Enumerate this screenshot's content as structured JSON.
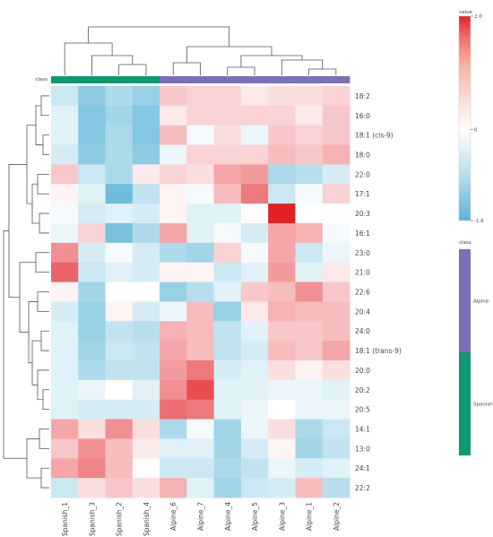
{
  "chart_data": {
    "type": "heatmap",
    "title": "",
    "xlabel": "",
    "ylabel": "",
    "columns": [
      "Spanish_1",
      "Spanish_3",
      "Spanish_2",
      "Spanish_4",
      "Alpine_6",
      "Alpine_7",
      "Alpine_4",
      "Alpine_5",
      "Alpine_3",
      "Alpine_1",
      "Alpine_2"
    ],
    "rows": [
      "18:2",
      "16:0",
      "18:1 (cis-9)",
      "18:0",
      "22:0",
      "17:1",
      "20:3",
      "16:1",
      "23:0",
      "21:0",
      "22:6",
      "20:4",
      "24:0",
      "18:1 (trans-9)",
      "20:0",
      "20:2",
      "20:5",
      "14:1",
      "13:0",
      "24:1",
      "22:2"
    ],
    "values": [
      [
        -0.5,
        -1.1,
        -0.8,
        -1.0,
        0.5,
        0.4,
        0.4,
        0.2,
        0.3,
        0.3,
        0.4
      ],
      [
        -0.3,
        -1.2,
        -0.9,
        -1.2,
        0.2,
        0.4,
        0.4,
        0.4,
        0.4,
        0.2,
        0.5
      ],
      [
        -0.3,
        -1.2,
        -0.8,
        -1.2,
        0.6,
        -0.1,
        0.3,
        -0.2,
        0.5,
        0.4,
        0.5
      ],
      [
        -0.4,
        -1.1,
        -0.8,
        -1.1,
        -0.2,
        0.4,
        0.4,
        0.4,
        0.6,
        0.5,
        0.7
      ],
      [
        0.5,
        -0.5,
        -0.8,
        0.2,
        0.4,
        0.3,
        0.8,
        0.9,
        -0.8,
        -0.7,
        -0.4
      ],
      [
        0.1,
        -0.3,
        -1.4,
        -0.6,
        0.1,
        -0.1,
        0.6,
        1.2,
        -0.5,
        -0.1,
        0.4
      ],
      [
        -0.1,
        -0.4,
        -0.3,
        -0.4,
        0.1,
        -0.3,
        -0.3,
        0.0,
        2.0,
        0.0,
        0.0
      ],
      [
        -0.2,
        0.4,
        -1.3,
        -0.8,
        0.8,
        -0.3,
        -0.1,
        -0.4,
        0.8,
        0.7,
        -0.1
      ],
      [
        1.0,
        -0.4,
        -0.1,
        -0.4,
        -0.8,
        -0.9,
        0.4,
        -0.1,
        0.8,
        -0.5,
        -0.2
      ],
      [
        1.4,
        -0.5,
        -0.3,
        -0.4,
        0.1,
        0.1,
        -0.5,
        -0.3,
        0.9,
        -0.3,
        0.2
      ],
      [
        0.1,
        -0.9,
        0.0,
        0.0,
        -1.0,
        -0.7,
        -0.3,
        0.5,
        0.6,
        1.0,
        0.5
      ],
      [
        -0.4,
        -1.0,
        0.1,
        -0.4,
        -0.2,
        0.6,
        -1.0,
        0.2,
        0.7,
        0.6,
        0.6
      ],
      [
        -0.3,
        -1.0,
        -0.6,
        -0.7,
        0.7,
        0.6,
        -0.6,
        -0.3,
        0.5,
        0.5,
        0.6
      ],
      [
        -0.3,
        -0.9,
        -0.5,
        -0.6,
        0.8,
        0.6,
        -0.6,
        -0.4,
        0.6,
        0.5,
        0.8
      ],
      [
        -0.3,
        -0.8,
        -0.6,
        -0.6,
        0.9,
        1.2,
        -0.4,
        -0.3,
        0.3,
        0.1,
        0.3
      ],
      [
        -0.3,
        -0.2,
        0.0,
        -0.3,
        1.0,
        1.6,
        -0.3,
        -0.3,
        -0.2,
        -0.2,
        -0.3
      ],
      [
        -0.3,
        -0.4,
        -0.4,
        -0.4,
        1.3,
        1.2,
        -0.3,
        -0.2,
        0.0,
        -0.2,
        -0.2
      ],
      [
        0.8,
        0.3,
        1.0,
        0.3,
        -0.8,
        -0.1,
        -0.9,
        -0.2,
        0.3,
        -0.8,
        -0.5
      ],
      [
        0.5,
        1.0,
        0.6,
        0.2,
        -0.3,
        -0.3,
        -0.9,
        -0.4,
        0.1,
        -0.9,
        -0.6
      ],
      [
        0.8,
        1.1,
        0.6,
        0.0,
        -0.5,
        -0.5,
        -0.8,
        -0.6,
        -0.2,
        -0.4,
        -0.3
      ],
      [
        -0.5,
        0.3,
        0.5,
        0.3,
        0.7,
        -0.3,
        -0.9,
        -0.5,
        -0.4,
        0.6,
        -0.7
      ]
    ],
    "column_class": [
      "Spanish",
      "Spanish",
      "Spanish",
      "Spanish",
      "Alpine",
      "Alpine",
      "Alpine",
      "Alpine",
      "Alpine",
      "Alpine",
      "Alpine"
    ],
    "annotation_label": "class",
    "colorbar": {
      "title": "value",
      "min": -1.6,
      "max": 2.0,
      "ticks": [
        {
          "value": 2.0,
          "label": "2.0"
        },
        {
          "value": 0,
          "label": "0"
        },
        {
          "value": -1.6,
          "label": "-1.6"
        }
      ],
      "colors": {
        "low": "#5ab4d6",
        "mid": "#ffffff",
        "high": "#e32026"
      }
    },
    "class_legend": {
      "title": "class",
      "items": [
        {
          "name": "Alpine",
          "color": "#7b6fb8"
        },
        {
          "name": "Spanish",
          "color": "#0f9872"
        }
      ]
    },
    "dendrograms": {
      "columns": true,
      "rows": true
    }
  }
}
